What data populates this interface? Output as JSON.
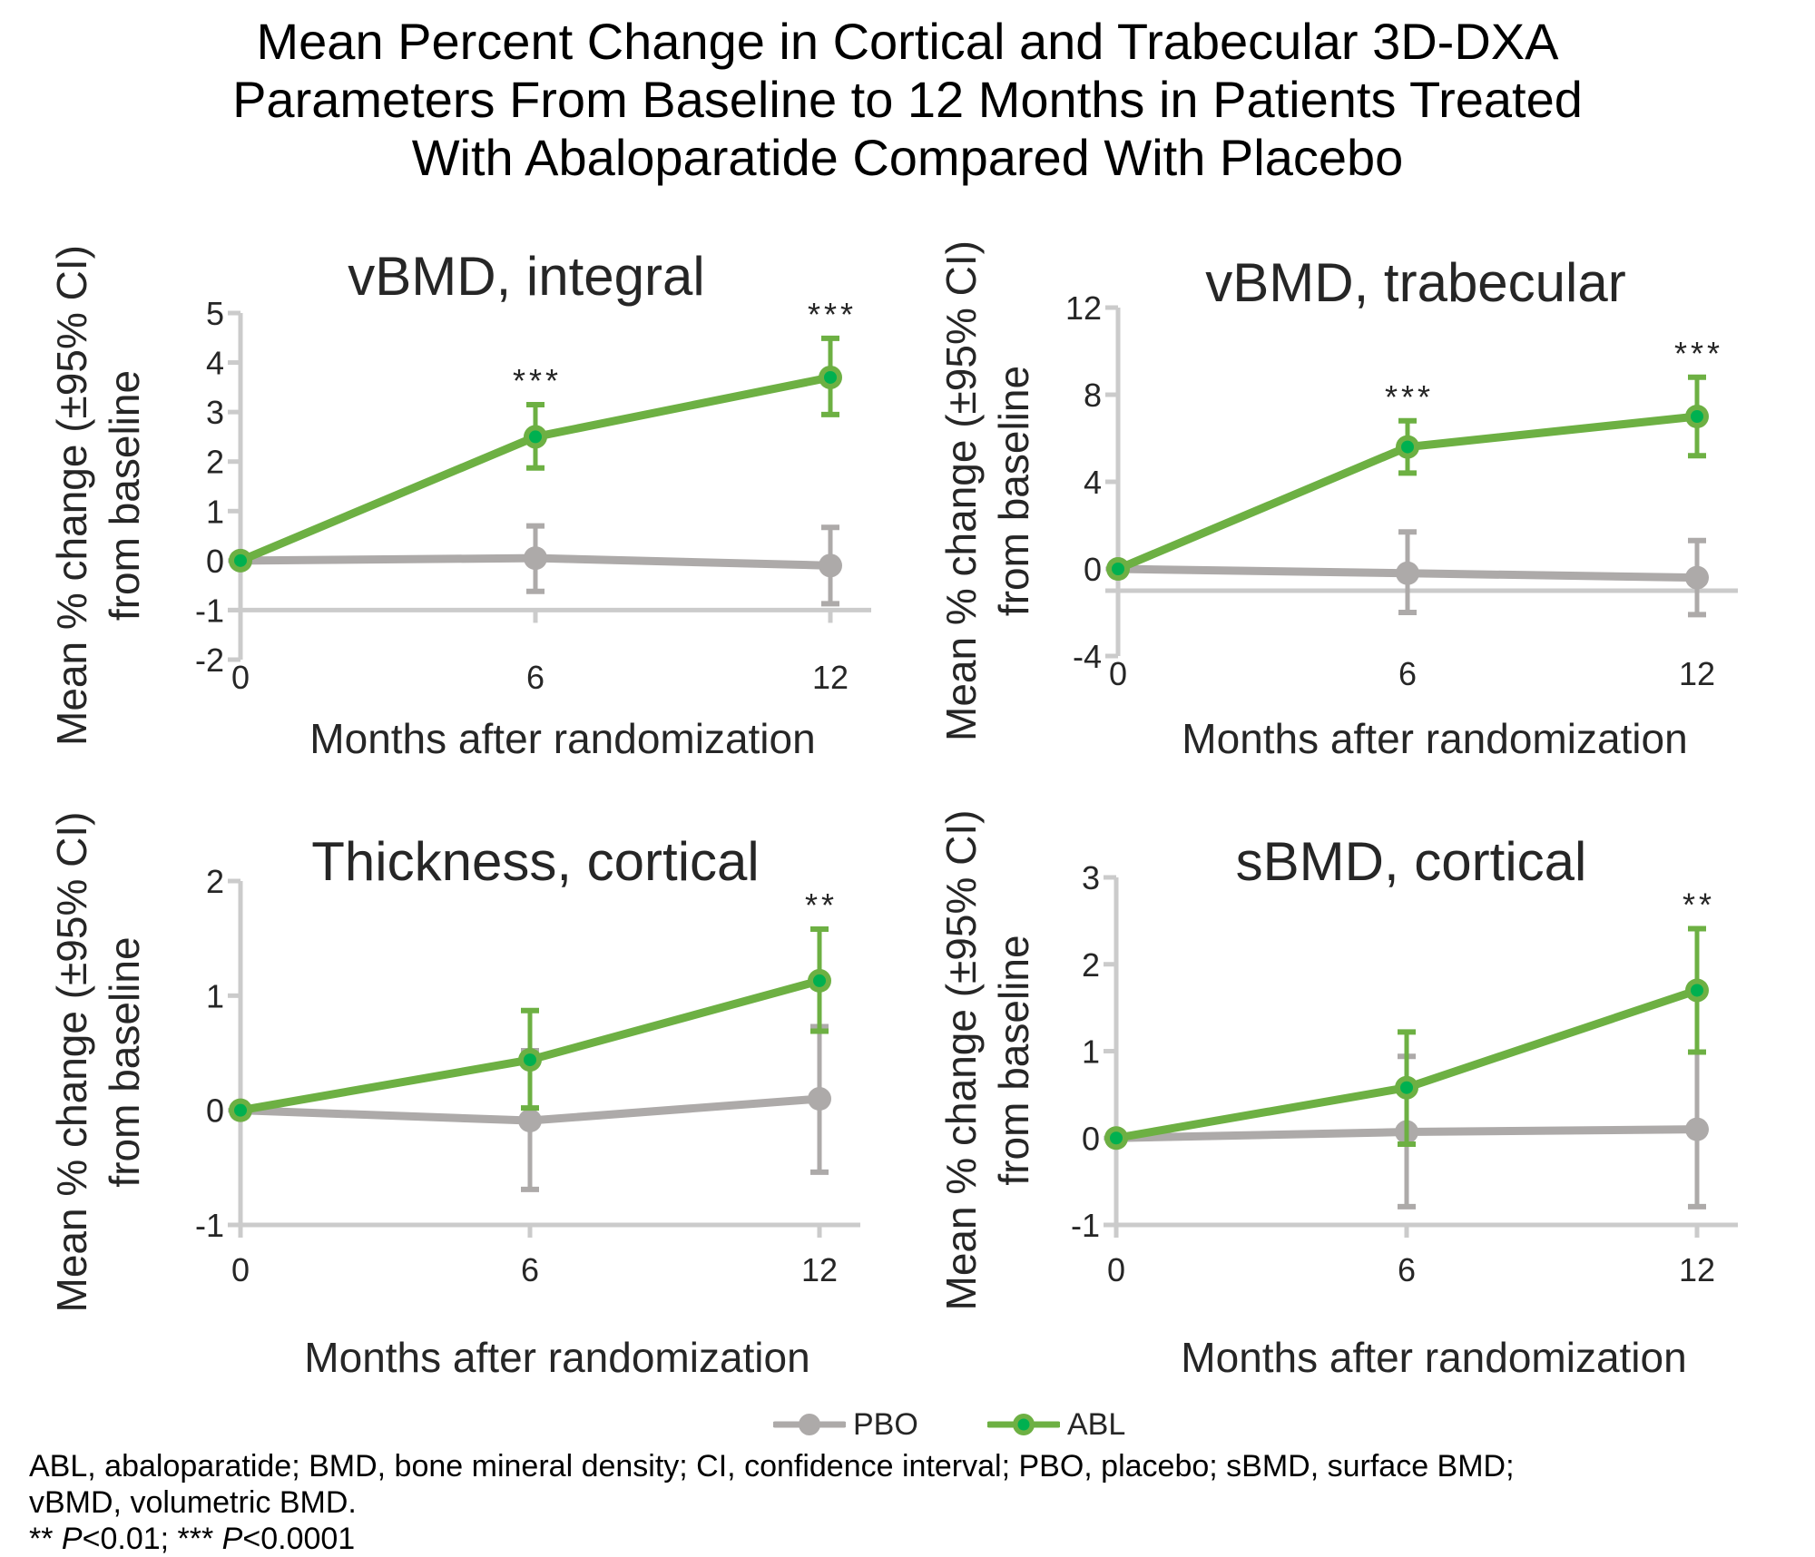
{
  "title_lines": [
    "Mean Percent Change in Cortical and Trabecular 3D-DXA",
    "Parameters From Baseline to 12 Months in Patients Treated",
    "With Abaloparatide Compared With Placebo"
  ],
  "legend": {
    "items": [
      {
        "name": "PBO",
        "color": "#adaaa9",
        "marker_fill": "#adaaa9"
      },
      {
        "name": "ABL",
        "color": "#6db043",
        "marker_fill": "#00b050"
      }
    ]
  },
  "colors": {
    "pbo": "#adaaa9",
    "abl_line": "#6db043",
    "abl_marker": "#00b050",
    "axis": "#cbcbcb",
    "text": "#262626"
  },
  "footnotes": {
    "line1": "ABL, abaloparatide; BMD, bone mineral density; CI, confidence interval; PBO, placebo; sBMD, surface BMD;",
    "line2": "vBMD, volumetric BMD.",
    "line3_parts": [
      "** ",
      "P",
      "<0.01; *** ",
      "P",
      "<0.0001"
    ]
  },
  "chart_data": [
    {
      "type": "line",
      "title": "vBMD, integral",
      "xlabel": "Months after randomization",
      "ylabel": [
        "Mean % change (±95% CI)",
        "from baseline"
      ],
      "x": [
        0,
        6,
        12
      ],
      "xticks": [
        "0",
        "6",
        "12"
      ],
      "ylim": [
        -2,
        5
      ],
      "yticks": [
        -2,
        -1,
        0,
        1,
        2,
        3,
        4,
        5
      ],
      "x_axis_crosses_at": -1,
      "grid": false,
      "series": [
        {
          "name": "PBO",
          "values": [
            0,
            0.05,
            -0.1
          ],
          "ci_lower": [
            null,
            -0.62,
            -0.87
          ],
          "ci_upper": [
            null,
            0.7,
            0.67
          ]
        },
        {
          "name": "ABL",
          "values": [
            0,
            2.5,
            3.7
          ],
          "ci_lower": [
            null,
            1.87,
            2.95
          ],
          "ci_upper": [
            null,
            3.15,
            4.49
          ]
        }
      ],
      "annotations": [
        {
          "x": 6,
          "text": "***"
        },
        {
          "x": 12,
          "text": "***"
        }
      ]
    },
    {
      "type": "line",
      "title": "vBMD, trabecular",
      "xlabel": "Months after randomization",
      "ylabel": [
        "Mean % change (±95% CI)",
        "from baseline"
      ],
      "x": [
        0,
        6,
        12
      ],
      "xticks": [
        "0",
        "6",
        "12"
      ],
      "ylim": [
        -4,
        12
      ],
      "yticks": [
        -4,
        0,
        4,
        8,
        12
      ],
      "x_axis_crosses_at": -1,
      "grid": false,
      "series": [
        {
          "name": "PBO",
          "values": [
            0,
            -0.2,
            -0.4
          ],
          "ci_lower": [
            null,
            -2.0,
            -2.1
          ],
          "ci_upper": [
            null,
            1.7,
            1.3
          ]
        },
        {
          "name": "ABL",
          "values": [
            0,
            5.6,
            7.0
          ],
          "ci_lower": [
            null,
            4.4,
            5.2
          ],
          "ci_upper": [
            null,
            6.8,
            8.8
          ]
        }
      ],
      "annotations": [
        {
          "x": 6,
          "text": "***"
        },
        {
          "x": 12,
          "text": "***"
        }
      ]
    },
    {
      "type": "line",
      "title": "Thickness, cortical",
      "xlabel": "Months after randomization",
      "ylabel": [
        "Mean % change (±95% CI)",
        "from baseline"
      ],
      "x": [
        0,
        6,
        12
      ],
      "xticks": [
        "0",
        "6",
        "12"
      ],
      "ylim": [
        -1,
        2
      ],
      "yticks": [
        -1,
        0,
        1,
        2
      ],
      "x_axis_crosses_at": -1,
      "grid": false,
      "series": [
        {
          "name": "PBO",
          "values": [
            0,
            -0.09,
            0.1
          ],
          "ci_lower": [
            null,
            -0.69,
            -0.54
          ],
          "ci_upper": [
            null,
            0.52,
            0.73
          ]
        },
        {
          "name": "ABL",
          "values": [
            0,
            0.44,
            1.13
          ],
          "ci_lower": [
            null,
            0.02,
            0.69
          ],
          "ci_upper": [
            null,
            0.87,
            1.58
          ]
        }
      ],
      "annotations": [
        {
          "x": 12,
          "text": "**"
        }
      ]
    },
    {
      "type": "line",
      "title": "sBMD, cortical",
      "xlabel": "Months after randomization",
      "ylabel": [
        "Mean % change (±95% CI)",
        "from baseline"
      ],
      "x": [
        0,
        6,
        12
      ],
      "xticks": [
        "0",
        "6",
        "12"
      ],
      "ylim": [
        -1,
        3
      ],
      "yticks": [
        -1,
        0,
        1,
        2,
        3
      ],
      "x_axis_crosses_at": -1,
      "grid": false,
      "series": [
        {
          "name": "PBO",
          "values": [
            0,
            0.07,
            0.1
          ],
          "ci_lower": [
            null,
            -0.79,
            -0.79
          ],
          "ci_upper": [
            null,
            0.94,
            0.99
          ]
        },
        {
          "name": "ABL",
          "values": [
            0,
            0.58,
            1.7
          ],
          "ci_lower": [
            null,
            -0.07,
            0.99
          ],
          "ci_upper": [
            null,
            1.22,
            2.41
          ]
        }
      ],
      "annotations": [
        {
          "x": 12,
          "text": "**"
        }
      ]
    }
  ]
}
